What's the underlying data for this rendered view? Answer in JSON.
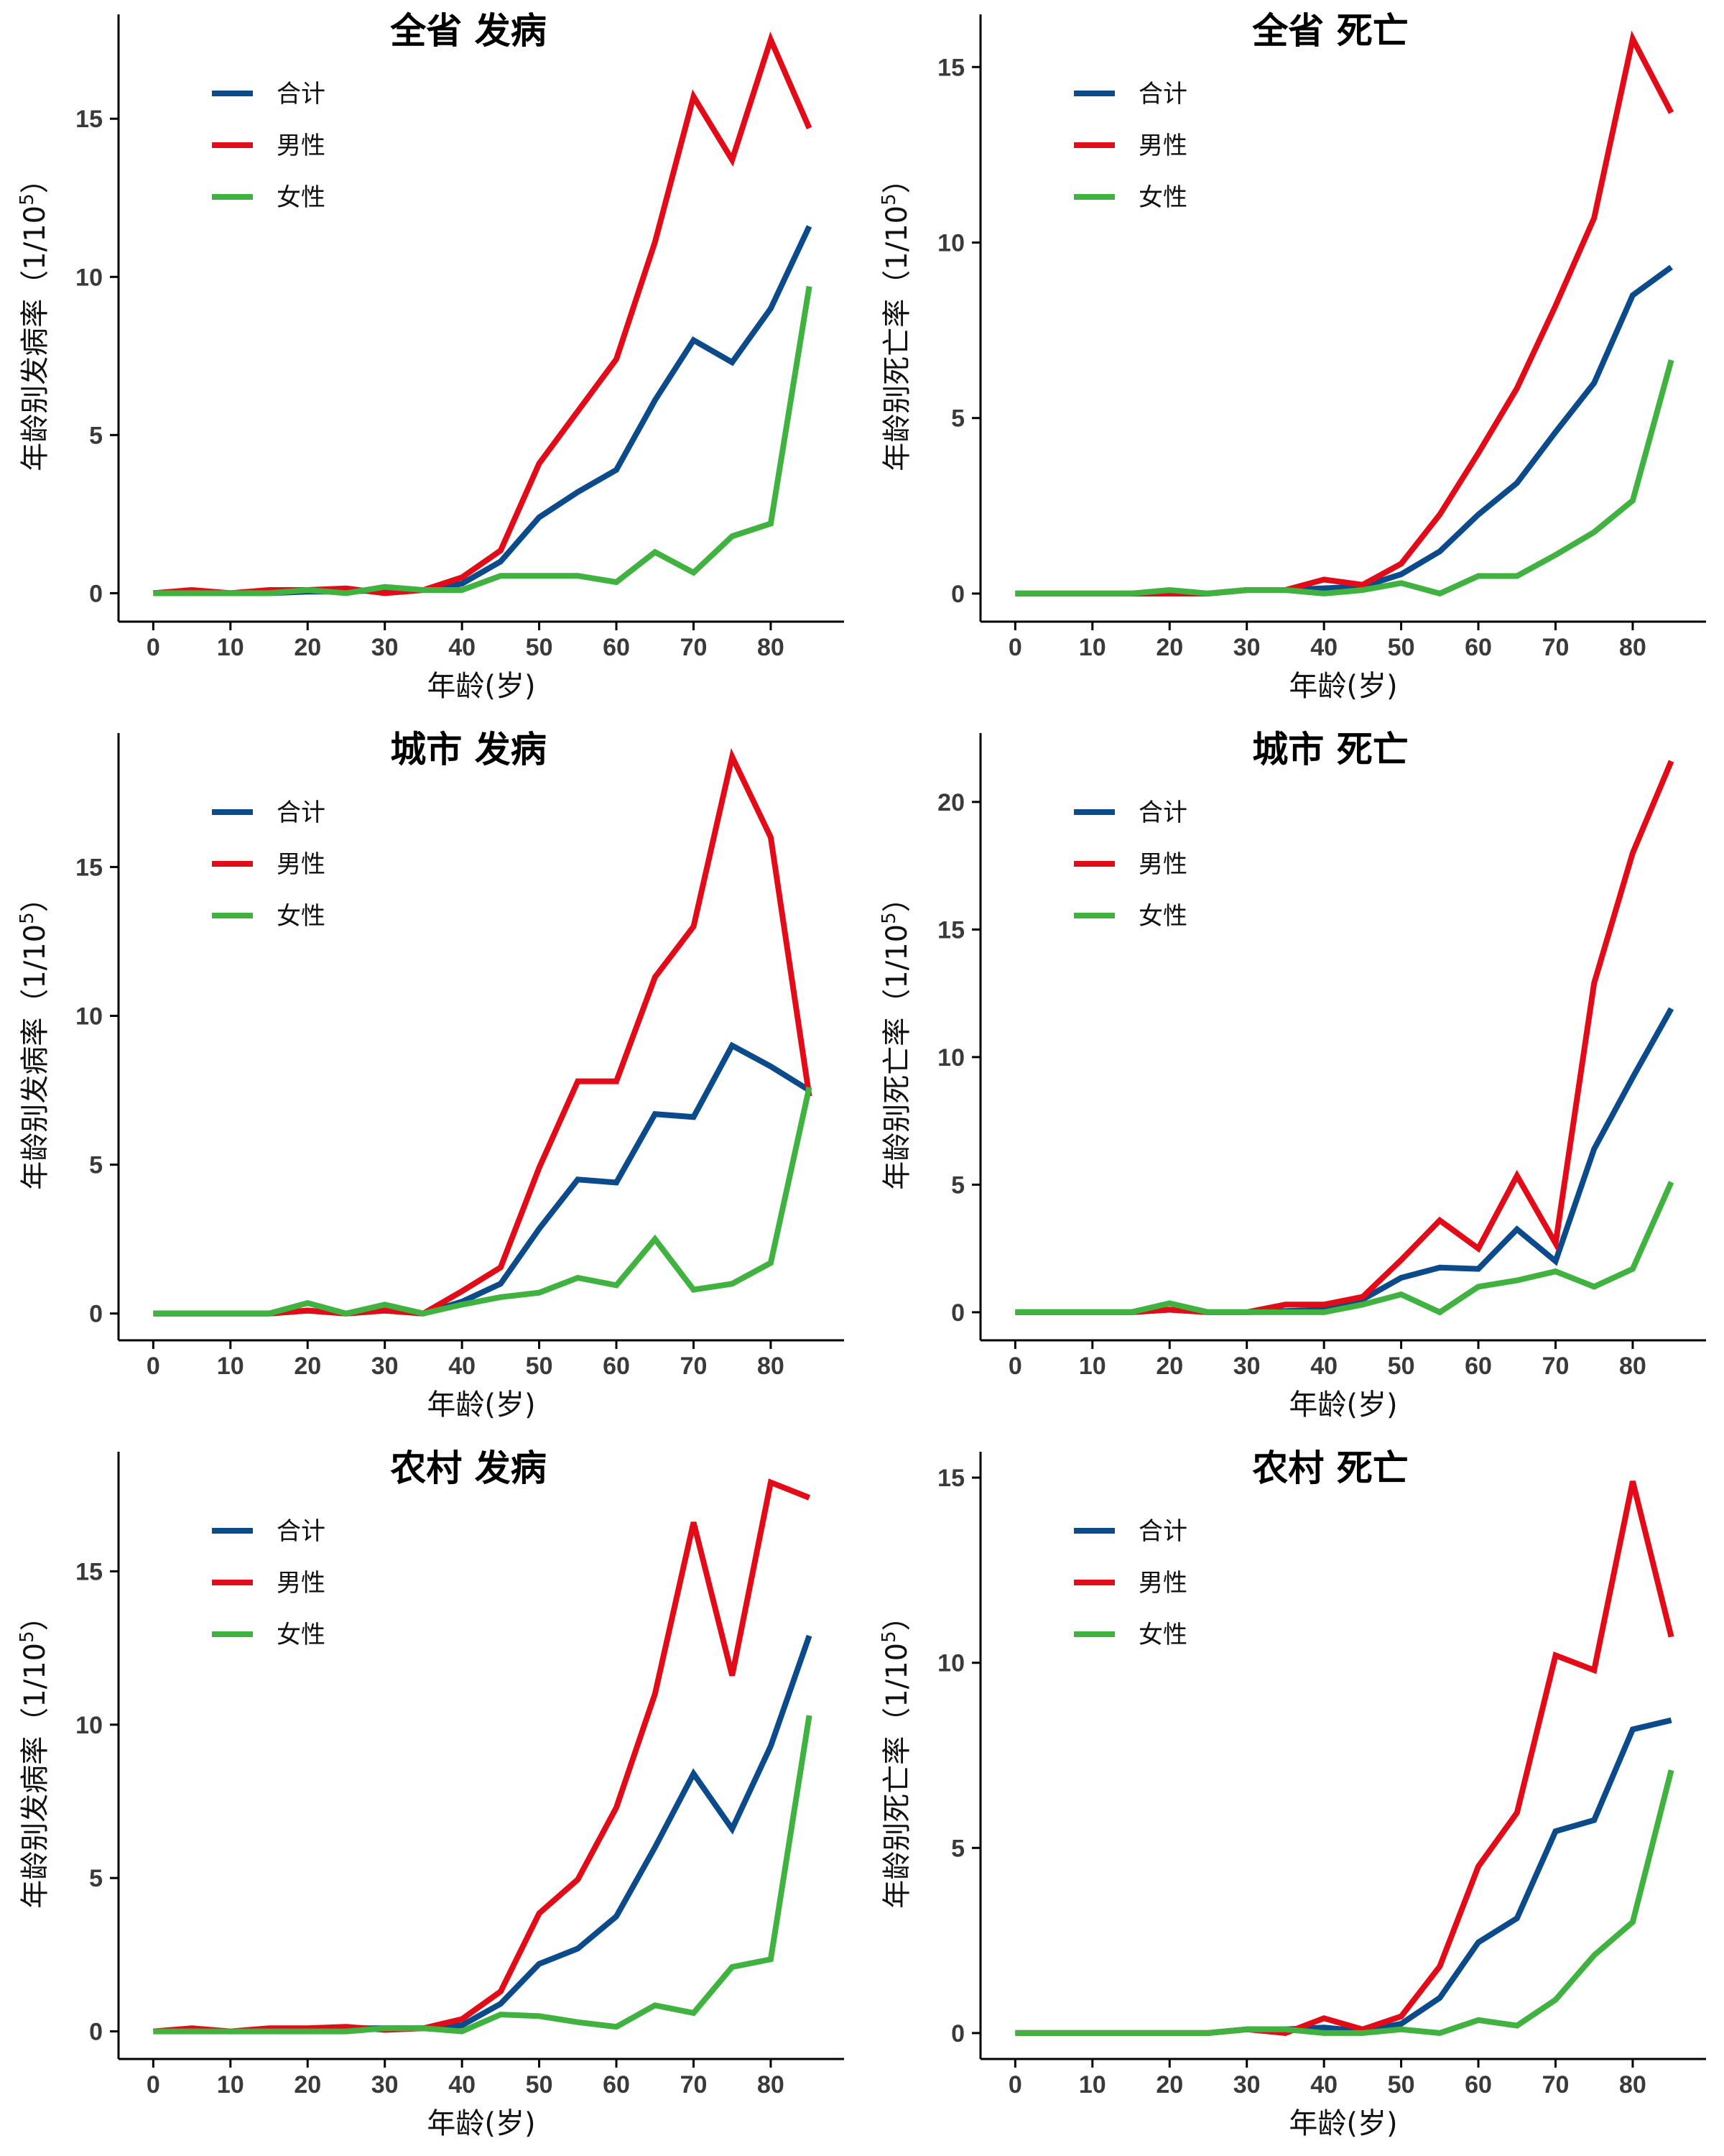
{
  "colors": {
    "total": "#0b4a8b",
    "male": "#e30b17",
    "female": "#3fb23f"
  },
  "chart_data": [
    {
      "type": "line",
      "title": "全省 发病",
      "xlabel": "年龄(岁)",
      "ylabel": "年龄别发病率（1/10",
      "ylabel_sup": "5",
      "ylabel_close": "）",
      "x": [
        0,
        5,
        10,
        15,
        20,
        25,
        30,
        35,
        40,
        45,
        50,
        55,
        60,
        65,
        70,
        75,
        80,
        85
      ],
      "xticks": [
        0,
        10,
        20,
        30,
        40,
        50,
        60,
        70,
        80
      ],
      "yticks": [
        0,
        5,
        10,
        15
      ],
      "xlim": [
        -4.5,
        89.5
      ],
      "ylim": [
        -0.9,
        18.3
      ],
      "legend": [
        "合计",
        "男性",
        "女性"
      ],
      "series": [
        {
          "name": "合计",
          "values": [
            0,
            0,
            0,
            0,
            0.05,
            0.05,
            0.1,
            0.1,
            0.3,
            1.0,
            2.4,
            3.2,
            3.9,
            6.1,
            8.0,
            7.3,
            9.0,
            11.6
          ]
        },
        {
          "name": "男性",
          "values": [
            0,
            0.1,
            0,
            0.1,
            0.1,
            0.15,
            0,
            0.1,
            0.5,
            1.35,
            4.1,
            5.75,
            7.4,
            11.1,
            15.7,
            13.7,
            17.5,
            14.7
          ]
        },
        {
          "name": "女性",
          "values": [
            0,
            0,
            0,
            0,
            0.1,
            0,
            0.2,
            0.1,
            0.1,
            0.55,
            0.55,
            0.55,
            0.35,
            1.3,
            0.65,
            1.8,
            2.2,
            9.7
          ]
        }
      ]
    },
    {
      "type": "line",
      "title": "全省 死亡",
      "xlabel": "年龄(岁)",
      "ylabel": "年龄别死亡率（1/10",
      "ylabel_sup": "5",
      "ylabel_close": "）",
      "x": [
        0,
        5,
        10,
        15,
        20,
        25,
        30,
        35,
        40,
        45,
        50,
        55,
        60,
        65,
        70,
        75,
        80,
        85
      ],
      "xticks": [
        0,
        10,
        20,
        30,
        40,
        50,
        60,
        70,
        80
      ],
      "yticks": [
        0,
        5,
        10,
        15
      ],
      "xlim": [
        -4.5,
        89.5
      ],
      "ylim": [
        -0.8,
        16.5
      ],
      "legend": [
        "合计",
        "男性",
        "女性"
      ],
      "series": [
        {
          "name": "合计",
          "values": [
            0,
            0,
            0,
            0,
            0,
            0,
            0.1,
            0.1,
            0.15,
            0.2,
            0.55,
            1.2,
            2.25,
            3.15,
            4.6,
            6.0,
            8.5,
            9.3
          ]
        },
        {
          "name": "男性",
          "values": [
            0,
            0,
            0,
            0,
            0,
            0,
            0.1,
            0.1,
            0.4,
            0.25,
            0.85,
            2.25,
            4.0,
            5.85,
            8.2,
            10.7,
            15.8,
            13.7
          ]
        },
        {
          "name": "女性",
          "values": [
            0,
            0,
            0,
            0,
            0.1,
            0,
            0.1,
            0.1,
            0,
            0.1,
            0.3,
            0,
            0.5,
            0.5,
            1.1,
            1.75,
            2.65,
            6.65
          ]
        }
      ]
    },
    {
      "type": "line",
      "title": "城市 发病",
      "xlabel": "年龄(岁)",
      "ylabel": "年龄别发病率（1/10",
      "ylabel_sup": "5",
      "ylabel_close": "）",
      "x": [
        0,
        5,
        10,
        15,
        20,
        25,
        30,
        35,
        40,
        45,
        50,
        55,
        60,
        65,
        70,
        75,
        80,
        85
      ],
      "xticks": [
        0,
        10,
        20,
        30,
        40,
        50,
        60,
        70,
        80
      ],
      "yticks": [
        0,
        5,
        10,
        15
      ],
      "xlim": [
        -4.5,
        89.5
      ],
      "ylim": [
        -0.9,
        19.5
      ],
      "legend": [
        "合计",
        "男性",
        "女性"
      ],
      "series": [
        {
          "name": "合计",
          "values": [
            0,
            0,
            0,
            0,
            0.1,
            0,
            0.1,
            0,
            0.4,
            1.0,
            2.85,
            4.5,
            4.4,
            6.7,
            6.6,
            9.0,
            8.3,
            7.5
          ]
        },
        {
          "name": "男性",
          "values": [
            0,
            0,
            0,
            0,
            0.1,
            0,
            0.1,
            0,
            0.75,
            1.55,
            4.9,
            7.8,
            7.8,
            11.3,
            13.0,
            18.7,
            16.0,
            7.3
          ]
        },
        {
          "name": "女性",
          "values": [
            0,
            0,
            0,
            0,
            0.35,
            0,
            0.3,
            0,
            0.3,
            0.55,
            0.7,
            1.2,
            0.95,
            2.5,
            0.8,
            1.0,
            1.7,
            7.6
          ]
        }
      ]
    },
    {
      "type": "line",
      "title": "城市 死亡",
      "xlabel": "年龄(岁)",
      "ylabel": "年龄别死亡率（1/10",
      "ylabel_sup": "5",
      "ylabel_close": "）",
      "x": [
        0,
        5,
        10,
        15,
        20,
        25,
        30,
        35,
        40,
        45,
        50,
        55,
        60,
        65,
        70,
        75,
        80,
        85
      ],
      "xticks": [
        0,
        10,
        20,
        30,
        40,
        50,
        60,
        70,
        80
      ],
      "yticks": [
        0,
        5,
        10,
        15,
        20
      ],
      "xlim": [
        -4.5,
        89.5
      ],
      "ylim": [
        -1.1,
        22.7
      ],
      "legend": [
        "合计",
        "男性",
        "女性"
      ],
      "series": [
        {
          "name": "合计",
          "values": [
            0,
            0,
            0,
            0,
            0.1,
            0,
            0,
            0.05,
            0.1,
            0.5,
            1.35,
            1.75,
            1.7,
            3.25,
            2.0,
            6.4,
            9.2,
            11.9
          ]
        },
        {
          "name": "男性",
          "values": [
            0,
            0,
            0,
            0,
            0.1,
            0,
            0,
            0.3,
            0.3,
            0.6,
            2.05,
            3.6,
            2.5,
            5.35,
            2.7,
            12.9,
            18.0,
            21.6
          ]
        },
        {
          "name": "女性",
          "values": [
            0,
            0,
            0,
            0,
            0.35,
            0,
            0,
            0,
            0,
            0.3,
            0.7,
            0,
            1.0,
            1.25,
            1.6,
            1.0,
            1.7,
            5.1
          ]
        }
      ]
    },
    {
      "type": "line",
      "title": "农村 发病",
      "xlabel": "年龄(岁)",
      "ylabel": "年龄别发病率（1/10",
      "ylabel_sup": "5",
      "ylabel_close": "）",
      "x": [
        0,
        5,
        10,
        15,
        20,
        25,
        30,
        35,
        40,
        45,
        50,
        55,
        60,
        65,
        70,
        75,
        80,
        85
      ],
      "xticks": [
        0,
        10,
        20,
        30,
        40,
        50,
        60,
        70,
        80
      ],
      "yticks": [
        0,
        5,
        10,
        15
      ],
      "xlim": [
        -4.5,
        89.5
      ],
      "ylim": [
        -0.9,
        18.9
      ],
      "legend": [
        "合计",
        "男性",
        "女性"
      ],
      "series": [
        {
          "name": "合计",
          "values": [
            0,
            0.05,
            0,
            0.05,
            0.05,
            0.1,
            0.1,
            0.1,
            0.2,
            0.9,
            2.2,
            2.7,
            3.75,
            6.0,
            8.4,
            6.6,
            9.3,
            12.9
          ]
        },
        {
          "name": "男性",
          "values": [
            0,
            0.1,
            0,
            0.1,
            0.1,
            0.15,
            0.05,
            0.1,
            0.4,
            1.3,
            3.85,
            4.95,
            7.3,
            11.0,
            16.6,
            11.6,
            17.9,
            17.4
          ]
        },
        {
          "name": "女性",
          "values": [
            0,
            0,
            0,
            0,
            0,
            0,
            0.1,
            0.1,
            0,
            0.55,
            0.5,
            0.3,
            0.15,
            0.85,
            0.6,
            2.1,
            2.35,
            10.3
          ]
        }
      ]
    },
    {
      "type": "line",
      "title": "农村 死亡",
      "xlabel": "年龄(岁)",
      "ylabel": "年龄别死亡率（1/10",
      "ylabel_sup": "5",
      "ylabel_close": "）",
      "x": [
        0,
        5,
        10,
        15,
        20,
        25,
        30,
        35,
        40,
        45,
        50,
        55,
        60,
        65,
        70,
        75,
        80,
        85
      ],
      "xticks": [
        0,
        10,
        20,
        30,
        40,
        50,
        60,
        70,
        80
      ],
      "yticks": [
        0,
        5,
        10,
        15
      ],
      "xlim": [
        -4.5,
        89.5
      ],
      "ylim": [
        -0.7,
        15.7
      ],
      "legend": [
        "合计",
        "男性",
        "女性"
      ],
      "series": [
        {
          "name": "合计",
          "values": [
            0,
            0,
            0,
            0,
            0,
            0,
            0.1,
            0.1,
            0.15,
            0.05,
            0.25,
            0.95,
            2.45,
            3.1,
            5.45,
            5.75,
            8.2,
            8.45
          ]
        },
        {
          "name": "男性",
          "values": [
            0,
            0,
            0,
            0,
            0,
            0,
            0.1,
            0,
            0.4,
            0.1,
            0.45,
            1.8,
            4.5,
            5.95,
            10.2,
            9.8,
            14.9,
            10.7
          ]
        },
        {
          "name": "女性",
          "values": [
            0,
            0,
            0,
            0,
            0,
            0,
            0.1,
            0.1,
            0,
            0,
            0.1,
            0,
            0.35,
            0.2,
            0.9,
            2.1,
            3.0,
            7.1
          ]
        }
      ]
    }
  ]
}
